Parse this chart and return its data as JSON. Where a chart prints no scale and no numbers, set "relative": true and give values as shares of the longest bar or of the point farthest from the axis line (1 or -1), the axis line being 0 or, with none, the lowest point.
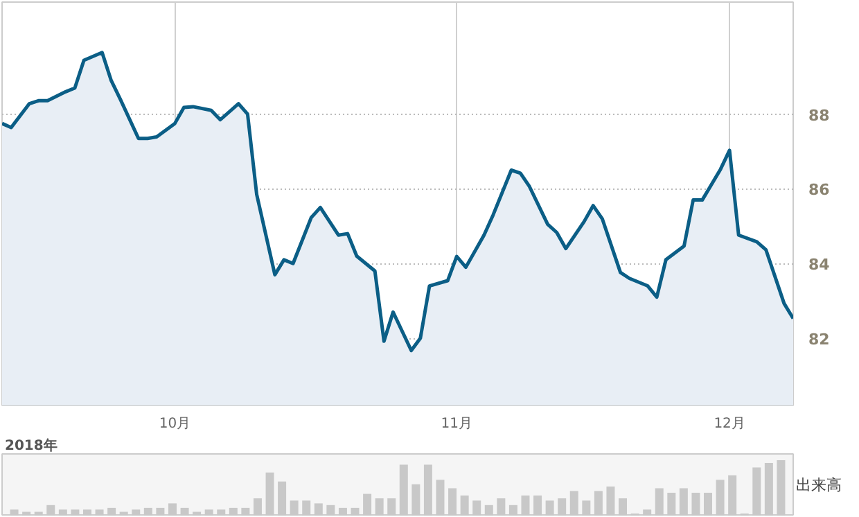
{
  "chart_data": [
    {
      "type": "area",
      "color": "#0b5e86",
      "annotations": [
        "2018年"
      ],
      "x": [
        "2018-09-12",
        "2018-09-13",
        "2018-09-15",
        "2018-09-16",
        "2018-09-17",
        "2018-09-19",
        "2018-09-20",
        "2018-09-21",
        "2018-09-23",
        "2018-09-24",
        "2018-09-25",
        "2018-09-27",
        "2018-09-28",
        "2018-09-29",
        "2018-10-01",
        "2018-10-02",
        "2018-10-03",
        "2018-10-05",
        "2018-10-06",
        "2018-10-08",
        "2018-10-09",
        "2018-10-10",
        "2018-10-12",
        "2018-10-13",
        "2018-10-14",
        "2018-10-16",
        "2018-10-17",
        "2018-10-19",
        "2018-10-20",
        "2018-10-21",
        "2018-10-23",
        "2018-10-24",
        "2018-10-25",
        "2018-10-27",
        "2018-10-28",
        "2018-10-29",
        "2018-10-31",
        "2018-11-01",
        "2018-11-02",
        "2018-11-04",
        "2018-11-05",
        "2018-11-07",
        "2018-11-08",
        "2018-11-09",
        "2018-11-11",
        "2018-11-12",
        "2018-11-13",
        "2018-11-15",
        "2018-11-16",
        "2018-11-17",
        "2018-11-19",
        "2018-11-20",
        "2018-11-22",
        "2018-11-23",
        "2018-11-24",
        "2018-11-26",
        "2018-11-27",
        "2018-11-28",
        "2018-11-30",
        "2018-12-01",
        "2018-12-02",
        "2018-12-04",
        "2018-12-05",
        "2018-12-07",
        "2018-12-08"
      ],
      "values": [
        87.75,
        87.64,
        88.28,
        88.36,
        88.36,
        88.6,
        88.7,
        89.44,
        89.65,
        88.9,
        88.4,
        87.35,
        87.35,
        87.39,
        87.75,
        88.18,
        88.2,
        88.1,
        87.85,
        88.28,
        88.0,
        85.85,
        83.7,
        84.1,
        84.0,
        85.23,
        85.5,
        84.76,
        84.8,
        84.2,
        83.8,
        81.92,
        82.7,
        81.67,
        82.0,
        83.4,
        83.54,
        84.19,
        83.9,
        84.76,
        85.3,
        86.5,
        86.42,
        86.06,
        85.05,
        84.83,
        84.4,
        85.12,
        85.55,
        85.2,
        83.76,
        83.6,
        83.4,
        83.1,
        84.1,
        84.47,
        85.7,
        85.7,
        86.52,
        87.03,
        84.76,
        84.58,
        84.37,
        82.93,
        82.53
      ],
      "xlim": [
        "2018-09-12",
        "2018-12-08"
      ],
      "ylim": [
        80.2,
        91
      ],
      "yticks": [
        82,
        84,
        86,
        88
      ],
      "xticks": [
        {
          "value": "2018-10-01",
          "label": "10月"
        },
        {
          "value": "2018-11-01",
          "label": "11月"
        },
        {
          "value": "2018-12-01",
          "label": "12月"
        }
      ],
      "grid": true
    },
    {
      "type": "bar",
      "relative": true,
      "color": "#c8c8c8",
      "ylabel": "出来高",
      "categories": [
        null,
        null,
        null,
        null,
        null,
        null,
        null,
        null,
        null,
        null,
        null,
        null,
        null,
        null,
        null,
        null,
        null,
        null,
        null,
        null,
        null,
        null,
        null,
        null,
        null,
        null,
        null,
        null,
        null,
        null,
        null,
        null,
        null,
        null,
        null,
        null,
        null,
        null,
        null,
        null,
        null,
        null,
        null,
        null,
        null,
        null,
        null,
        null,
        null,
        null,
        null,
        null,
        null,
        null,
        null,
        null,
        null,
        null,
        null,
        null,
        null,
        null,
        null,
        null
      ],
      "values": [
        0.12,
        0.08,
        0.08,
        0.2,
        0.12,
        0.12,
        0.12,
        0.12,
        0.15,
        0.08,
        0.12,
        0.15,
        0.15,
        0.23,
        0.15,
        0.08,
        0.12,
        0.12,
        0.15,
        0.15,
        0.32,
        0.78,
        0.62,
        0.28,
        0.28,
        0.23,
        0.2,
        0.15,
        0.15,
        0.4,
        0.32,
        0.32,
        0.92,
        0.57,
        0.92,
        0.65,
        0.5,
        0.37,
        0.28,
        0.2,
        0.32,
        0.2,
        0.37,
        0.37,
        0.28,
        0.32,
        0.45,
        0.28,
        0.45,
        0.53,
        0.32,
        0.05,
        0.12,
        0.5,
        0.42,
        0.5,
        0.42,
        0.42,
        0.65,
        0.73,
        0.05,
        0.87,
        0.95,
        1
      ]
    }
  ]
}
